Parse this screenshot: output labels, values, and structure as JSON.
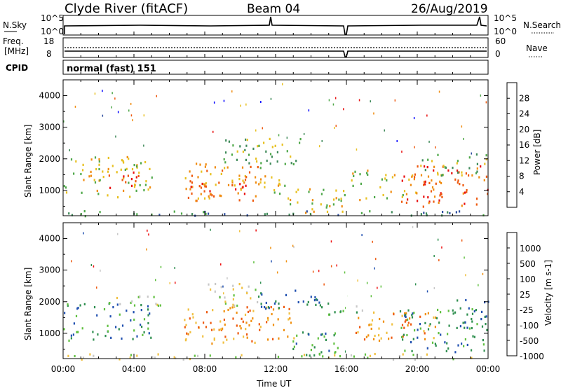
{
  "header": {
    "station": "Clyde River (fitACF)",
    "beam": "Beam 04",
    "date": "26/Aug/2019"
  },
  "status_panels": {
    "nsky_label": "N.Sky",
    "nsky_ticks": [
      "10^5",
      "10^0"
    ],
    "nsearch_label": "N.Search",
    "freq_label_1": "Freq.",
    "freq_label_2": "[MHz]",
    "freq_ticks": [
      "18",
      "8"
    ],
    "nave_label": "Nave",
    "nave_ticks": [
      "60",
      "0"
    ],
    "cpid_label": "CPID",
    "cpid_value": "normal (fast) 151"
  },
  "colors": {
    "power_scale": [
      "#0000ff",
      "#2f4fa0",
      "#3f8a5a",
      "#4fa84a",
      "#e8c020",
      "#f08c10",
      "#ee5a10",
      "#e81010"
    ],
    "velocity_scale": [
      "#ee1010",
      "#ee5a10",
      "#f09010",
      "#f0c040",
      "#c8c8c8",
      "#60c040",
      "#2f8f4f",
      "#2050b0"
    ]
  },
  "chart_data": [
    {
      "type": "heatmap",
      "title": "Power",
      "ylabel": "Slant Range [km]",
      "xlabel": "",
      "yticks": [
        "1000",
        "2000",
        "3000",
        "4000"
      ],
      "ylim": [
        200,
        4500
      ],
      "xlim": [
        0,
        24
      ],
      "colorbar_label": "Power [dB]",
      "colorbar_ticks": [
        "4",
        "8",
        "12",
        "16",
        "20",
        "24",
        "28"
      ],
      "scatter_regions": [
        {
          "t0": 0.0,
          "t1": 5.0,
          "r0": 800,
          "r1": 2100,
          "level": 4
        },
        {
          "t0": 2.5,
          "t1": 4.5,
          "r0": 1100,
          "r1": 1700,
          "level": 7
        },
        {
          "t0": 6.8,
          "t1": 11.0,
          "r0": 700,
          "r1": 1900,
          "level": 5
        },
        {
          "t0": 7.0,
          "t1": 10.5,
          "r0": 800,
          "r1": 1300,
          "level": 6
        },
        {
          "t0": 9.0,
          "t1": 13.5,
          "r0": 1700,
          "r1": 2700,
          "level": 3
        },
        {
          "t0": 11.0,
          "t1": 12.8,
          "r0": 900,
          "r1": 1500,
          "level": 4
        },
        {
          "t0": 12.5,
          "t1": 16.0,
          "r0": 300,
          "r1": 1100,
          "level": 4
        },
        {
          "t0": 16.2,
          "t1": 20.0,
          "r0": 700,
          "r1": 1700,
          "level": 4
        },
        {
          "t0": 19.0,
          "t1": 24.0,
          "r0": 500,
          "r1": 1800,
          "level": 6
        },
        {
          "t0": 20.0,
          "t1": 24.0,
          "r0": 1500,
          "r1": 2200,
          "level": 3
        },
        {
          "t0": 0.0,
          "t1": 24.0,
          "r0": 200,
          "r1": 380,
          "level": 2
        }
      ]
    },
    {
      "type": "heatmap",
      "title": "Velocity",
      "ylabel": "Slant Range [km]",
      "xlabel": "Time UT",
      "yticks": [
        "1000",
        "2000",
        "3000",
        "4000"
      ],
      "xticks": [
        "00:00",
        "04:00",
        "08:00",
        "12:00",
        "16:00",
        "20:00",
        "00:00"
      ],
      "ylim": [
        200,
        4500
      ],
      "xlim": [
        0,
        24
      ],
      "colorbar_label": "Velocity [m s-1]",
      "colorbar_ticks": [
        "1000",
        "500",
        "100",
        "25",
        "-25",
        "-100",
        "-500",
        "-1000"
      ],
      "scatter_regions": [
        {
          "t0": 0.0,
          "t1": 5.0,
          "r0": 800,
          "r1": 2000,
          "level": 6
        },
        {
          "t0": 3.0,
          "t1": 5.5,
          "r0": 1800,
          "r1": 2200,
          "level": 4
        },
        {
          "t0": 6.8,
          "t1": 13.0,
          "r0": 700,
          "r1": 1900,
          "level": 2
        },
        {
          "t0": 8.0,
          "t1": 11.0,
          "r0": 1900,
          "r1": 2600,
          "level": 4
        },
        {
          "t0": 11.0,
          "t1": 14.5,
          "r0": 1800,
          "r1": 2400,
          "level": 7
        },
        {
          "t0": 12.5,
          "t1": 16.0,
          "r0": 300,
          "r1": 1100,
          "level": 6
        },
        {
          "t0": 14.5,
          "t1": 17.0,
          "r0": 1600,
          "r1": 2000,
          "level": 5
        },
        {
          "t0": 16.5,
          "t1": 21.0,
          "r0": 800,
          "r1": 1700,
          "level": 2
        },
        {
          "t0": 19.0,
          "t1": 24.0,
          "r0": 400,
          "r1": 1800,
          "level": 6
        },
        {
          "t0": 22.0,
          "t1": 24.0,
          "r0": 1200,
          "r1": 2100,
          "level": 7
        },
        {
          "t0": 0.0,
          "t1": 24.0,
          "r0": 200,
          "r1": 380,
          "level": 4
        }
      ]
    }
  ]
}
